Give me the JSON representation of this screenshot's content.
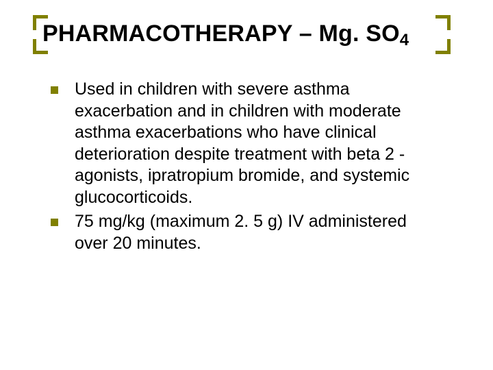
{
  "colors": {
    "accent": "#808000",
    "text": "#000000",
    "background": "#ffffff"
  },
  "typography": {
    "title_fontsize": 34,
    "title_weight": "bold",
    "body_fontsize": 25,
    "font_family": "Arial"
  },
  "layout": {
    "slide_width": 720,
    "slide_height": 540,
    "bracket_thickness": 5,
    "bracket_corner_length": 22,
    "bullet_marker_size": 11
  },
  "title": {
    "prefix": "PHARMACOTHERAPY – Mg. SO",
    "subscript": "4"
  },
  "bullets": [
    "Used in children with severe asthma exacerbation and in children with moderate asthma exacerbations who have clinical deterioration despite treatment with beta 2 - agonists, ipratropium bromide, and systemic glucocorticoids.",
    "75 mg/kg (maximum 2. 5 g) IV administered over 20 minutes."
  ]
}
